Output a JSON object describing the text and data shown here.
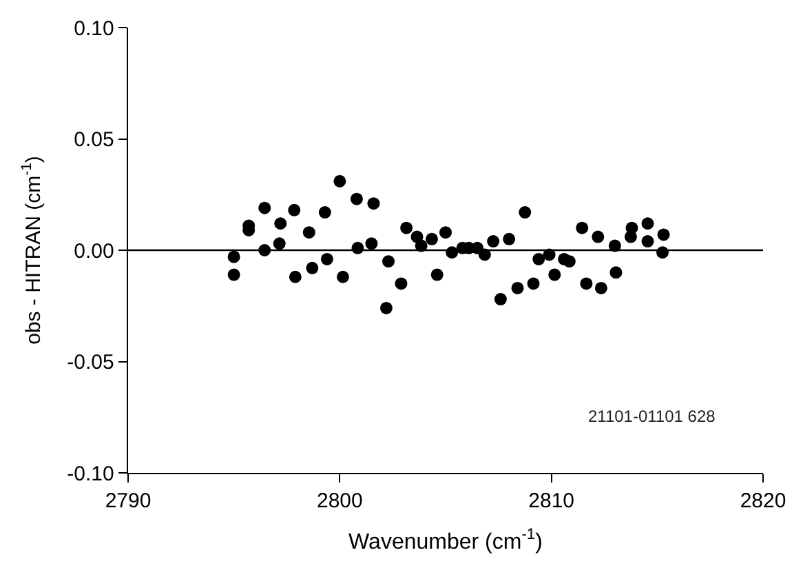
{
  "chart_data": {
    "type": "scatter",
    "xlabel": "Wavenumber (cm$^{-1}$)",
    "ylabel": "obs - HITRAN (cm$^{-1}$)",
    "xlim": [
      2790,
      2820
    ],
    "xticks": [
      2790,
      2800,
      2810,
      2820
    ],
    "ylim": [
      -0.1,
      0.1
    ],
    "yticks": [
      {
        "value": -0.1,
        "label": "-0.10"
      },
      {
        "value": -0.05,
        "label": "-0.05"
      },
      {
        "value": 0,
        "label": "0.00"
      },
      {
        "value": 0.05,
        "label": "0.05"
      },
      {
        "value": 0.1,
        "label": "0.10"
      }
    ],
    "grid": false,
    "marker": "circle",
    "ref_lines": [
      {
        "axis": "y",
        "value": 0,
        "color": "#000000",
        "line_style": "solid"
      }
    ],
    "annotations": [
      "21101-01101 628"
    ],
    "series": [
      {
        "color": "#000000",
        "x": [
          2795.0,
          2795.0,
          2795.7,
          2795.7,
          2796.45,
          2796.45,
          2797.2,
          2797.15,
          2797.85,
          2797.9,
          2798.55,
          2798.7,
          2799.3,
          2799.4,
          2800.0,
          2800.15,
          2800.8,
          2800.85,
          2801.6,
          2801.5,
          2802.2,
          2802.3,
          2802.9,
          2803.15,
          2803.65,
          2803.85,
          2804.35,
          2804.6,
          2805.0,
          2805.3,
          2805.8,
          2806.1,
          2806.5,
          2806.85,
          2807.25,
          2808.0,
          2808.75,
          2807.6,
          2808.4,
          2809.15,
          2809.4,
          2809.9,
          2810.15,
          2810.6,
          2810.85,
          2811.45,
          2811.65,
          2812.2,
          2812.35,
          2813.0,
          2813.05,
          2813.8,
          2813.75,
          2814.55,
          2814.55,
          2815.3,
          2815.25
        ],
        "values": [
          -0.003,
          -0.011,
          0.011,
          0.009,
          0.019,
          0.0,
          0.012,
          0.003,
          0.018,
          -0.012,
          0.008,
          -0.008,
          0.017,
          -0.004,
          0.031,
          -0.012,
          0.023,
          0.001,
          0.021,
          0.003,
          -0.026,
          -0.005,
          -0.015,
          0.01,
          0.006,
          0.002,
          0.005,
          -0.011,
          0.008,
          -0.001,
          0.001,
          0.001,
          0.001,
          -0.002,
          0.004,
          0.005,
          0.017,
          -0.022,
          -0.017,
          -0.015,
          -0.004,
          -0.002,
          -0.011,
          -0.004,
          -0.005,
          0.01,
          -0.015,
          0.006,
          -0.017,
          0.002,
          -0.01,
          0.01,
          0.006,
          0.012,
          0.004,
          0.007,
          -0.001
        ]
      }
    ]
  }
}
